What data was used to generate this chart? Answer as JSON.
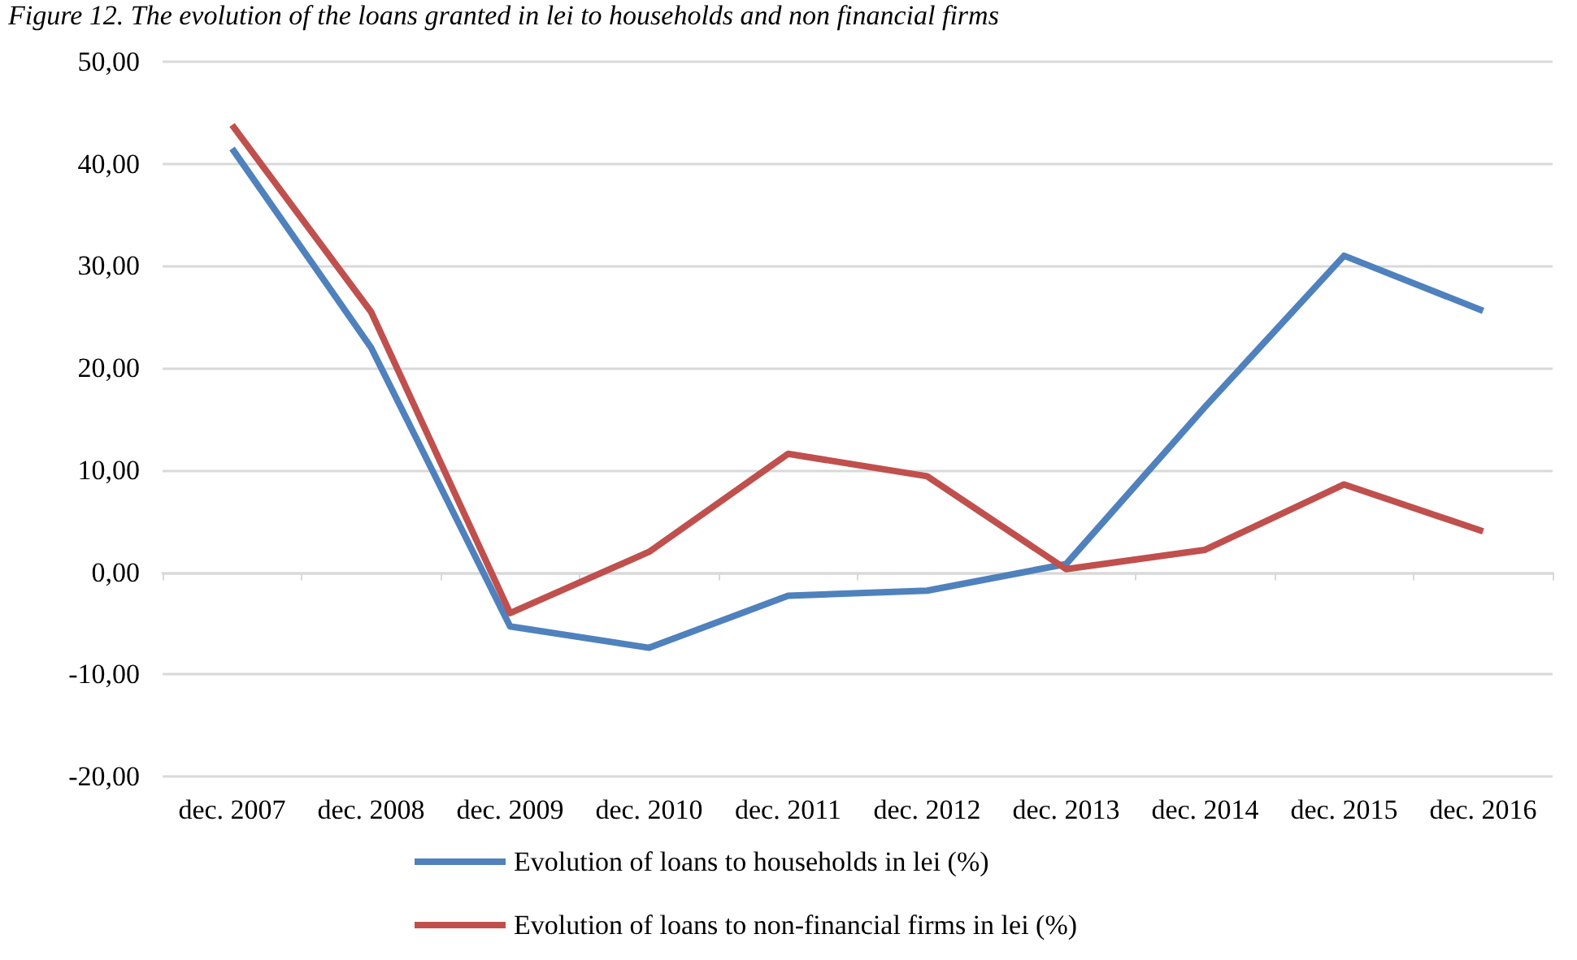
{
  "chart_data": {
    "type": "line",
    "title": "Figure 12. The evolution of the loans granted in lei to households and non financial firms",
    "categories": [
      "dec. 2007",
      "dec. 2008",
      "dec. 2009",
      "dec. 2010",
      "dec. 2011",
      "dec. 2012",
      "dec. 2013",
      "dec. 2014",
      "dec. 2015",
      "dec. 2016"
    ],
    "series": [
      {
        "name": "Evolution of loans to households in lei (%)",
        "color": "#4f81bd",
        "values": [
          41.5,
          22.0,
          -5.3,
          -7.4,
          -2.3,
          -1.8,
          0.8,
          16.2,
          31.0,
          25.6
        ]
      },
      {
        "name": "Evolution of loans to non-financial firms in lei (%)",
        "color": "#c0504d",
        "values": [
          43.8,
          25.5,
          -4.0,
          2.0,
          11.6,
          9.4,
          0.3,
          2.2,
          8.6,
          4.0
        ]
      }
    ],
    "ylim": [
      -20,
      50
    ],
    "yticks": [
      {
        "value": -20,
        "label": "-20,00"
      },
      {
        "value": -10,
        "label": "-10,00"
      },
      {
        "value": 0,
        "label": "0,00"
      },
      {
        "value": 10,
        "label": "10,00"
      },
      {
        "value": 20,
        "label": "20,00"
      },
      {
        "value": 30,
        "label": "30,00"
      },
      {
        "value": 40,
        "label": "40,00"
      },
      {
        "value": 50,
        "label": "50,00"
      }
    ],
    "grid": "y",
    "legend": "bottom",
    "marker": "none",
    "line_style": "solid"
  }
}
